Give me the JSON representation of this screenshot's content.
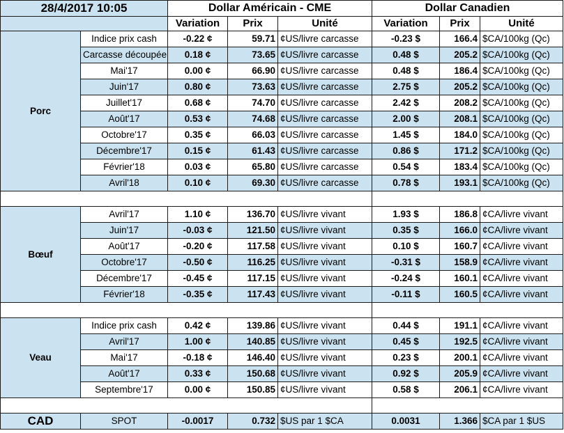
{
  "header": {
    "timestamp": "28/4/2017 10:05",
    "usd_title": "Dollar Américain - CME",
    "cad_title": "Dollar Canadien",
    "col_variation": "Variation",
    "col_prix": "Prix",
    "col_unite": "Unité"
  },
  "colors": {
    "positive": "#1aaa55",
    "negative": "#e8202a",
    "neutral": "#000000",
    "row_fill": "#cbe3f0"
  },
  "groups": [
    {
      "name": "Porc",
      "rows": [
        {
          "label": "Indice prix cash",
          "us_var": "-0.22 ¢",
          "us_dir": "neg",
          "us_price": "59.71",
          "us_unit": "¢US/livre carcasse",
          "ca_var": "-0.23 $",
          "ca_dir": "neg",
          "ca_price": "166.4",
          "ca_unit": "$CA/100kg (Qc)"
        },
        {
          "label": "Carcasse découpée",
          "us_var": "0.18 ¢",
          "us_dir": "pos",
          "us_price": "73.65",
          "us_unit": "¢US/livre carcasse",
          "ca_var": "0.48 $",
          "ca_dir": "pos",
          "ca_price": "205.2",
          "ca_unit": "$CA/100kg (Qc)"
        },
        {
          "label": "Mai'17",
          "us_var": "0.00 ¢",
          "us_dir": "zero",
          "us_price": "66.90",
          "us_unit": "¢US/livre carcasse",
          "ca_var": "0.48 $",
          "ca_dir": "pos",
          "ca_price": "186.4",
          "ca_unit": "$CA/100kg (Qc)"
        },
        {
          "label": "Juin'17",
          "us_var": "0.80 ¢",
          "us_dir": "pos",
          "us_price": "73.63",
          "us_unit": "¢US/livre carcasse",
          "ca_var": "2.75 $",
          "ca_dir": "pos",
          "ca_price": "205.2",
          "ca_unit": "$CA/100kg (Qc)"
        },
        {
          "label": "Juillet'17",
          "us_var": "0.68 ¢",
          "us_dir": "pos",
          "us_price": "74.70",
          "us_unit": "¢US/livre carcasse",
          "ca_var": "2.42 $",
          "ca_dir": "pos",
          "ca_price": "208.2",
          "ca_unit": "$CA/100kg (Qc)"
        },
        {
          "label": "Août'17",
          "us_var": "0.53 ¢",
          "us_dir": "pos",
          "us_price": "74.68",
          "us_unit": "¢US/livre carcasse",
          "ca_var": "2.00 $",
          "ca_dir": "pos",
          "ca_price": "208.1",
          "ca_unit": "$CA/100kg (Qc)"
        },
        {
          "label": "Octobre'17",
          "us_var": "0.35 ¢",
          "us_dir": "pos",
          "us_price": "66.03",
          "us_unit": "¢US/livre carcasse",
          "ca_var": "1.45 $",
          "ca_dir": "pos",
          "ca_price": "184.0",
          "ca_unit": "$CA/100kg (Qc)"
        },
        {
          "label": "Décembre'17",
          "us_var": "0.15 ¢",
          "us_dir": "pos",
          "us_price": "61.43",
          "us_unit": "¢US/livre carcasse",
          "ca_var": "0.86 $",
          "ca_dir": "pos",
          "ca_price": "171.2",
          "ca_unit": "$CA/100kg (Qc)"
        },
        {
          "label": "Février'18",
          "us_var": "0.03 ¢",
          "us_dir": "pos",
          "us_price": "65.80",
          "us_unit": "¢US/livre carcasse",
          "ca_var": "0.54 $",
          "ca_dir": "pos",
          "ca_price": "183.4",
          "ca_unit": "$CA/100kg (Qc)"
        },
        {
          "label": "Avril'18",
          "us_var": "0.10 ¢",
          "us_dir": "pos",
          "us_price": "69.30",
          "us_unit": "¢US/livre carcasse",
          "ca_var": "0.78 $",
          "ca_dir": "pos",
          "ca_price": "193.1",
          "ca_unit": "$CA/100kg (Qc)"
        }
      ]
    },
    {
      "name": "Bœuf",
      "rows": [
        {
          "label": "Avril'17",
          "us_var": "1.10 ¢",
          "us_dir": "pos",
          "us_price": "136.70",
          "us_unit": "¢US/livre vivant",
          "ca_var": "1.93 $",
          "ca_dir": "pos",
          "ca_price": "186.8",
          "ca_unit": "¢CA/livre vivant"
        },
        {
          "label": "Juin'17",
          "us_var": "-0.03 ¢",
          "us_dir": "neg",
          "us_price": "121.50",
          "us_unit": "¢US/livre vivant",
          "ca_var": "0.35 $",
          "ca_dir": "pos",
          "ca_price": "166.0",
          "ca_unit": "¢CA/livre vivant"
        },
        {
          "label": "Août'17",
          "us_var": "-0.20 ¢",
          "us_dir": "neg",
          "us_price": "117.58",
          "us_unit": "¢US/livre vivant",
          "ca_var": "0.10 $",
          "ca_dir": "pos",
          "ca_price": "160.7",
          "ca_unit": "¢CA/livre vivant"
        },
        {
          "label": "Octobre'17",
          "us_var": "-0.50 ¢",
          "us_dir": "neg",
          "us_price": "116.25",
          "us_unit": "¢US/livre vivant",
          "ca_var": "-0.31 $",
          "ca_dir": "neg",
          "ca_price": "158.9",
          "ca_unit": "¢CA/livre vivant"
        },
        {
          "label": "Décembre'17",
          "us_var": "-0.45 ¢",
          "us_dir": "neg",
          "us_price": "117.15",
          "us_unit": "¢US/livre vivant",
          "ca_var": "-0.24 $",
          "ca_dir": "neg",
          "ca_price": "160.1",
          "ca_unit": "¢CA/livre vivant"
        },
        {
          "label": "Février'18",
          "us_var": "-0.35 ¢",
          "us_dir": "neg",
          "us_price": "117.43",
          "us_unit": "¢US/livre vivant",
          "ca_var": "-0.11 $",
          "ca_dir": "neg",
          "ca_price": "160.5",
          "ca_unit": "¢CA/livre vivant"
        }
      ]
    },
    {
      "name": "Veau",
      "rows": [
        {
          "label": "Indice prix cash",
          "us_var": "0.42 ¢",
          "us_dir": "pos",
          "us_price": "139.86",
          "us_unit": "¢US/livre vivant",
          "ca_var": "0.44 $",
          "ca_dir": "pos",
          "ca_price": "191.1",
          "ca_unit": "¢CA/livre vivant"
        },
        {
          "label": "Avril'17",
          "us_var": "1.00 ¢",
          "us_dir": "pos",
          "us_price": "140.85",
          "us_unit": "¢US/livre vivant",
          "ca_var": "0.45 $",
          "ca_dir": "pos",
          "ca_price": "192.5",
          "ca_unit": "¢CA/livre vivant"
        },
        {
          "label": "Mai'17",
          "us_var": "-0.18 ¢",
          "us_dir": "neg",
          "us_price": "146.40",
          "us_unit": "¢US/livre vivant",
          "ca_var": "0.23 $",
          "ca_dir": "pos",
          "ca_price": "200.1",
          "ca_unit": "¢CA/livre vivant"
        },
        {
          "label": "Août'17",
          "us_var": "0.33 ¢",
          "us_dir": "pos",
          "us_price": "150.68",
          "us_unit": "¢US/livre vivant",
          "ca_var": "0.92 $",
          "ca_dir": "pos",
          "ca_price": "205.9",
          "ca_unit": "¢CA/livre vivant"
        },
        {
          "label": "Septembre'17",
          "us_var": "0.00 ¢",
          "us_dir": "zero",
          "us_price": "150.85",
          "us_unit": "¢US/livre vivant",
          "ca_var": "0.58 $",
          "ca_dir": "pos",
          "ca_price": "206.1",
          "ca_unit": "¢CA/livre vivant"
        }
      ]
    }
  ],
  "cad": {
    "name": "CAD",
    "label": "SPOT",
    "us_var": "-0.0017",
    "us_dir": "neg",
    "us_price": "0.732",
    "us_unit": "$US par 1 $CA",
    "ca_var": "0.0031",
    "ca_dir": "pos",
    "ca_price": "1.366",
    "ca_unit": "$CA par 1 $US"
  }
}
